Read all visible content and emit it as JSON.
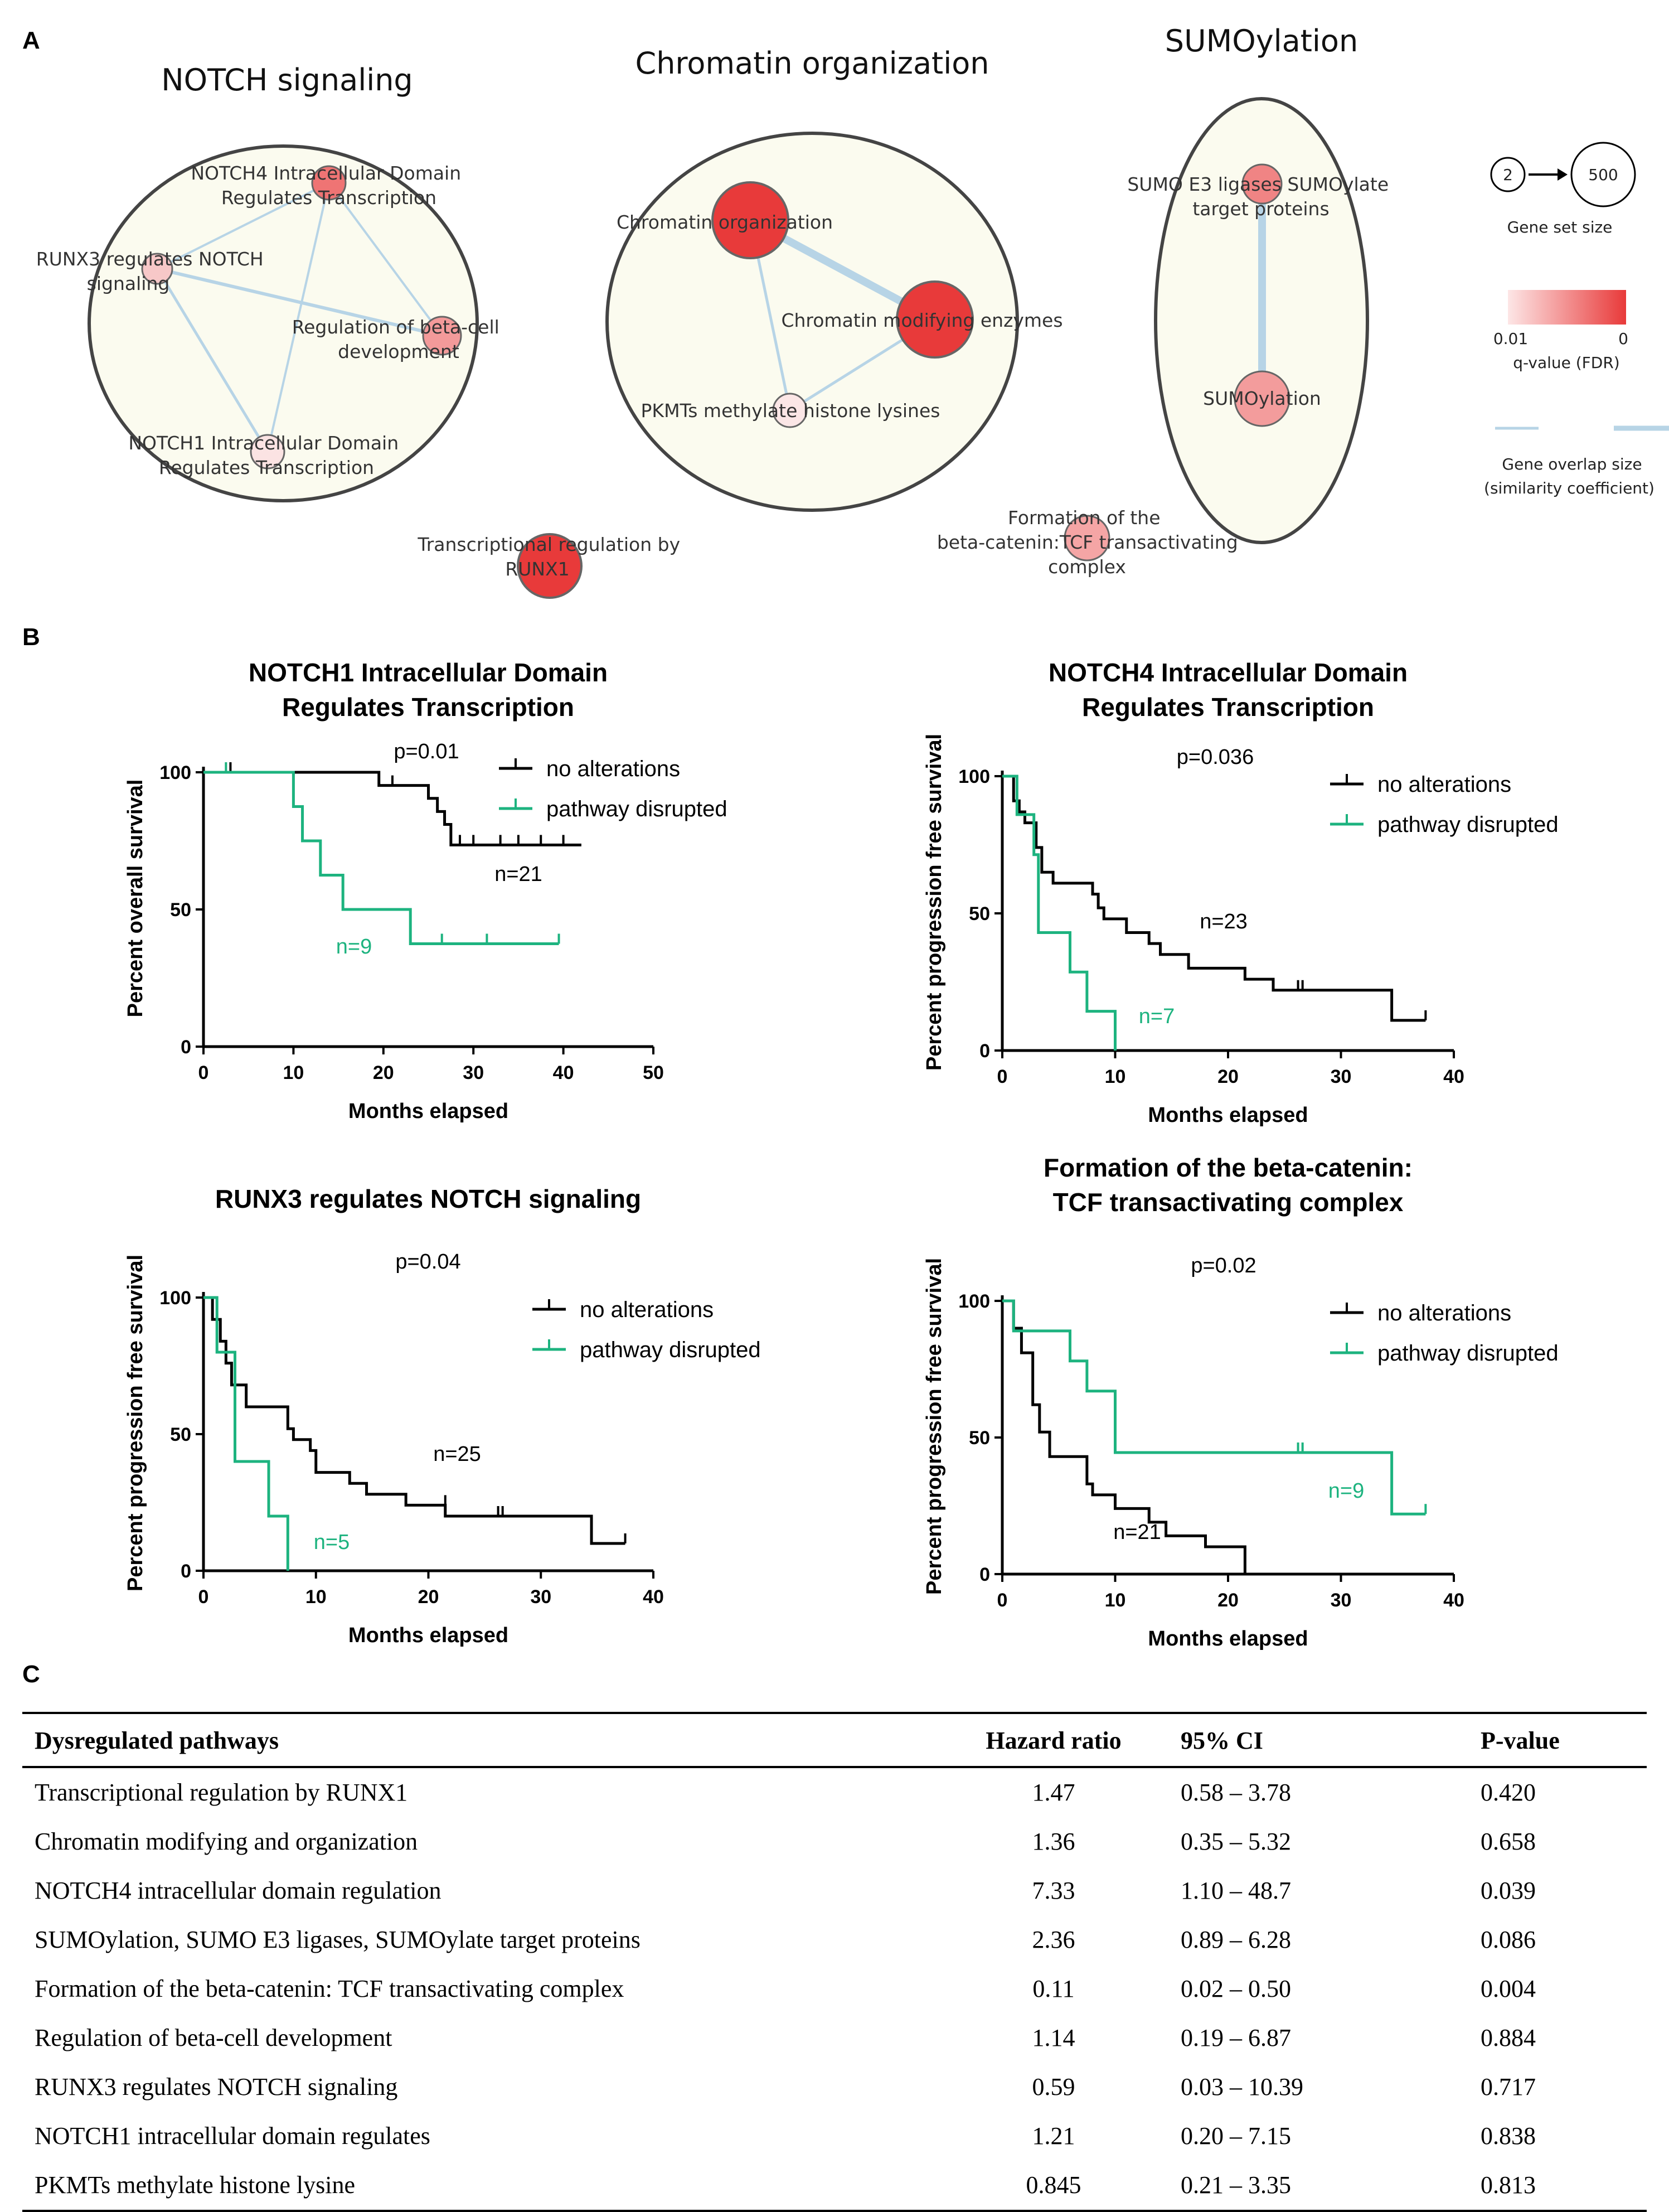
{
  "panels": {
    "a": "A",
    "b": "B",
    "c": "C"
  },
  "network": {
    "clusters": [
      {
        "id": "notch",
        "title": "NOTCH signaling"
      },
      {
        "id": "chromatin",
        "title": "Chromatin organization"
      },
      {
        "id": "sumo",
        "title": "SUMOylation"
      }
    ],
    "nodes": [
      {
        "id": "notch4",
        "lines": [
          "NOTCH4 Intracellular Domain",
          "Regulates Transcription"
        ],
        "q": 0.0035
      },
      {
        "id": "runx3",
        "lines": [
          "RUNX3 regulates NOTCH",
          "signaling"
        ],
        "q": 0.0075
      },
      {
        "id": "betacell",
        "lines": [
          "Regulation of beta-cell",
          "development"
        ],
        "q": 0.006
      },
      {
        "id": "notch1",
        "lines": [
          "NOTCH1 Intracellular Domain",
          "Regulates Transcription"
        ],
        "q": 0.009
      },
      {
        "id": "chromorg",
        "lines": [
          "Chromatin organization"
        ],
        "q": 0.0005
      },
      {
        "id": "chrommod",
        "lines": [
          "Chromatin modifying enzymes"
        ],
        "q": 0.0005
      },
      {
        "id": "pkmt",
        "lines": [
          "PKMTs methylate histone lysines"
        ],
        "q": 0.0095
      },
      {
        "id": "sumoe3",
        "lines": [
          "SUMO E3 ligases SUMOylate",
          "target proteins"
        ],
        "q": 0.004
      },
      {
        "id": "sumoylation",
        "lines": [
          "SUMOylation"
        ],
        "q": 0.0045
      },
      {
        "id": "runx1",
        "lines": [
          "Transcriptional regulation by",
          "RUNX1"
        ],
        "q": 0.0005
      },
      {
        "id": "betacatenin",
        "lines": [
          "Formation of the",
          "beta-catenin:TCF transactivating",
          "complex"
        ],
        "q": 0.005
      }
    ],
    "legend": {
      "size_min": "2",
      "size_max": "500",
      "size_label": "Gene set size",
      "q_min": "0.01",
      "q_max": "0",
      "q_label": "q-value (FDR)",
      "overlap_label_1": "Gene overlap size",
      "overlap_label_2": "(similarity coefficient)",
      "node_color_max": "#e83a3a",
      "node_color_min": "#fbe3e3"
    }
  },
  "chart_data": [
    {
      "type": "line",
      "id": "km1",
      "title": [
        "NOTCH1 Intracellular Domain",
        "Regulates Transcription"
      ],
      "xlabel": "Months elapsed",
      "ylabel": "Percent overall survival",
      "xlim": [
        0,
        50
      ],
      "ylim": [
        0,
        100
      ],
      "xticks": [
        0,
        10,
        20,
        30,
        40,
        50
      ],
      "yticks": [
        0,
        50,
        100
      ],
      "pvalue": "p=0.01",
      "series": [
        {
          "name": "no alterations",
          "color": "#000000",
          "n_label": "n=21",
          "steps": [
            [
              0,
              100
            ],
            [
              19.5,
              95.2
            ],
            [
              25,
              90.5
            ],
            [
              26,
              85.7
            ],
            [
              26.8,
              81
            ],
            [
              27.5,
              73.5
            ],
            [
              42,
              73.5
            ]
          ],
          "censors": [
            [
              3,
              100
            ],
            [
              21,
              95.2
            ],
            [
              28.5,
              73.5
            ],
            [
              30,
              73.5
            ],
            [
              33,
              73.5
            ],
            [
              35,
              73.5
            ],
            [
              37.5,
              73.5
            ],
            [
              40,
              73.5
            ]
          ]
        },
        {
          "name": "pathway disrupted",
          "color": "#1db37f",
          "n_label": "n=9",
          "steps": [
            [
              0,
              100
            ],
            [
              10,
              87.5
            ],
            [
              11,
              75
            ],
            [
              13,
              62.5
            ],
            [
              15.5,
              50
            ],
            [
              23,
              37.5
            ],
            [
              39.5,
              37.5
            ]
          ],
          "censors": [
            [
              2.5,
              100
            ],
            [
              26.5,
              37.5
            ],
            [
              31.5,
              37.5
            ],
            [
              39.5,
              37.5
            ]
          ]
        }
      ]
    },
    {
      "type": "line",
      "id": "km2",
      "title": [
        "NOTCH4 Intracellular Domain",
        "Regulates Transcription"
      ],
      "xlabel": "Months elapsed",
      "ylabel": "Percent progression free survival",
      "xlim": [
        0,
        40
      ],
      "ylim": [
        0,
        100
      ],
      "xticks": [
        0,
        10,
        20,
        30,
        40
      ],
      "yticks": [
        0,
        50,
        100
      ],
      "pvalue": "p=0.036",
      "series": [
        {
          "name": "no alterations",
          "color": "#000000",
          "n_label": "n=23",
          "steps": [
            [
              0,
              100
            ],
            [
              1,
              91
            ],
            [
              1.5,
              87
            ],
            [
              2,
              83
            ],
            [
              3,
              74
            ],
            [
              3.5,
              65
            ],
            [
              4.5,
              61
            ],
            [
              8,
              57
            ],
            [
              8.5,
              52
            ],
            [
              9,
              48
            ],
            [
              11,
              43
            ],
            [
              13,
              39
            ],
            [
              14,
              35
            ],
            [
              16.5,
              30
            ],
            [
              21.5,
              26
            ],
            [
              24,
              22
            ],
            [
              34.5,
              11
            ],
            [
              37.5,
              11
            ]
          ],
          "censors": [
            [
              26.2,
              22
            ],
            [
              26.6,
              22
            ],
            [
              37.5,
              11
            ]
          ]
        },
        {
          "name": "pathway disrupted",
          "color": "#1db37f",
          "n_label": "n=7",
          "steps": [
            [
              0,
              100
            ],
            [
              1.3,
              86
            ],
            [
              2.8,
              71.4
            ],
            [
              3.2,
              43
            ],
            [
              6,
              28.6
            ],
            [
              7.5,
              14.3
            ],
            [
              10,
              0
            ]
          ],
          "censors": []
        }
      ]
    },
    {
      "type": "line",
      "id": "km3",
      "title": [
        "RUNX3 regulates NOTCH signaling"
      ],
      "xlabel": "Months elapsed",
      "ylabel": "Percent progression free survival",
      "xlim": [
        0,
        40
      ],
      "ylim": [
        0,
        100
      ],
      "xticks": [
        0,
        10,
        20,
        30,
        40
      ],
      "yticks": [
        0,
        50,
        100
      ],
      "pvalue": "p=0.04",
      "series": [
        {
          "name": "no alterations",
          "color": "#000000",
          "n_label": "n=25",
          "steps": [
            [
              0,
              100
            ],
            [
              0.8,
              92
            ],
            [
              1.5,
              84
            ],
            [
              2,
              76
            ],
            [
              2.5,
              68
            ],
            [
              3.8,
              60
            ],
            [
              7.5,
              52
            ],
            [
              8,
              48
            ],
            [
              9.5,
              44
            ],
            [
              10,
              36
            ],
            [
              13,
              32
            ],
            [
              14.5,
              28
            ],
            [
              18,
              24
            ],
            [
              21.5,
              20
            ],
            [
              34.5,
              10
            ],
            [
              37.5,
              10
            ]
          ],
          "censors": [
            [
              21.5,
              24
            ],
            [
              26.2,
              20
            ],
            [
              26.6,
              20
            ],
            [
              37.5,
              10
            ]
          ]
        },
        {
          "name": "pathway disrupted",
          "color": "#1db37f",
          "n_label": "n=5",
          "steps": [
            [
              0,
              100
            ],
            [
              1.2,
              80
            ],
            [
              2.8,
              40
            ],
            [
              5.8,
              20
            ],
            [
              7.5,
              0
            ]
          ],
          "censors": []
        }
      ]
    },
    {
      "type": "line",
      "id": "km4",
      "title": [
        "Formation of the beta-catenin:",
        "TCF transactivating complex"
      ],
      "xlabel": "Months elapsed",
      "ylabel": "Percent progression free survival",
      "xlim": [
        0,
        40
      ],
      "ylim": [
        0,
        100
      ],
      "xticks": [
        0,
        10,
        20,
        30,
        40
      ],
      "yticks": [
        0,
        50,
        100
      ],
      "pvalue": "p=0.02",
      "series": [
        {
          "name": "no alterations",
          "color": "#000000",
          "n_label": "n=21",
          "steps": [
            [
              0,
              100
            ],
            [
              1,
              90
            ],
            [
              1.7,
              81
            ],
            [
              2.7,
              62
            ],
            [
              3.3,
              52
            ],
            [
              4.2,
              43
            ],
            [
              7.5,
              33
            ],
            [
              8,
              29
            ],
            [
              10,
              24
            ],
            [
              13,
              19
            ],
            [
              14.5,
              14
            ],
            [
              18,
              10
            ],
            [
              21.5,
              0
            ]
          ],
          "censors": []
        },
        {
          "name": "pathway disrupted",
          "color": "#1db37f",
          "n_label": "n=9",
          "steps": [
            [
              0,
              100
            ],
            [
              1,
              89
            ],
            [
              6,
              78
            ],
            [
              7.5,
              67
            ],
            [
              10,
              44.5
            ],
            [
              34.5,
              22
            ],
            [
              37.5,
              22
            ]
          ],
          "censors": [
            [
              26.2,
              44.5
            ],
            [
              26.6,
              44.5
            ],
            [
              37.5,
              22
            ]
          ]
        }
      ]
    }
  ],
  "table": {
    "headers": [
      "Dysregulated pathways",
      "Hazard ratio",
      "95% CI",
      "P-value"
    ],
    "rows": [
      [
        "Transcriptional regulation by RUNX1",
        "1.47",
        "0.58 – 3.78",
        "0.420"
      ],
      [
        "Chromatin modifying and organization",
        "1.36",
        "0.35 – 5.32",
        "0.658"
      ],
      [
        "NOTCH4 intracellular domain regulation",
        "7.33",
        "1.10 – 48.7",
        "0.039"
      ],
      [
        "SUMOylation, SUMO E3 ligases, SUMOylate target proteins",
        "2.36",
        "0.89 – 6.28",
        "0.086"
      ],
      [
        "Formation of the beta-catenin: TCF transactivating complex",
        "0.11",
        "0.02 – 0.50",
        "0.004"
      ],
      [
        "Regulation of beta-cell development",
        "1.14",
        "0.19 – 6.87",
        "0.884"
      ],
      [
        "RUNX3 regulates NOTCH signaling",
        "0.59",
        "0.03 – 10.39",
        "0.717"
      ],
      [
        "NOTCH1 intracellular domain regulates",
        "1.21",
        "0.20 – 7.15",
        "0.838"
      ],
      [
        "PKMTs methylate histone lysine",
        "0.845",
        "0.21 – 3.35",
        "0.813"
      ]
    ]
  }
}
